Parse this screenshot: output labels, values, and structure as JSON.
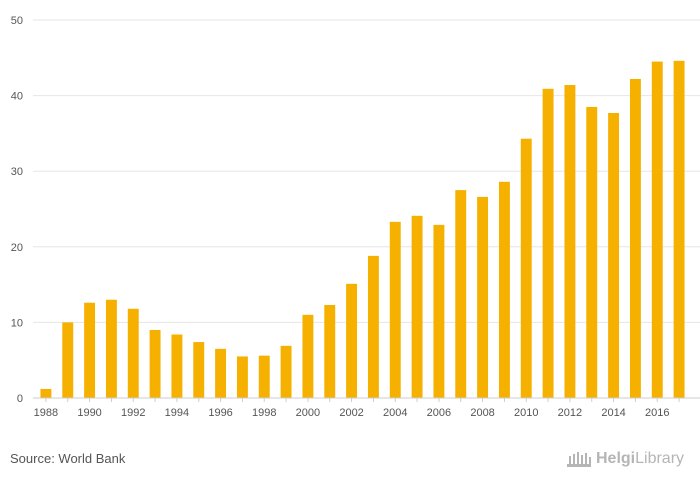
{
  "chart_data": {
    "type": "bar",
    "title": "",
    "xlabel": "",
    "ylabel": "",
    "ylim": [
      0,
      50
    ],
    "yticks": [
      0,
      10,
      20,
      30,
      40,
      50
    ],
    "grid": true,
    "legend": "none",
    "bar_color": "#F5B000",
    "categories": [
      "1988",
      "1989",
      "1990",
      "1991",
      "1992",
      "1993",
      "1994",
      "1995",
      "1996",
      "1997",
      "1998",
      "1999",
      "2000",
      "2001",
      "2002",
      "2003",
      "2004",
      "2005",
      "2006",
      "2007",
      "2008",
      "2009",
      "2010",
      "2011",
      "2012",
      "2013",
      "2014",
      "2015",
      "2016",
      "2017"
    ],
    "values": [
      1.2,
      10.0,
      12.6,
      13.0,
      11.8,
      9.0,
      8.4,
      7.4,
      6.5,
      5.5,
      5.6,
      6.9,
      11.0,
      12.3,
      15.1,
      18.8,
      23.3,
      24.1,
      22.9,
      27.5,
      26.6,
      28.6,
      34.3,
      40.9,
      41.4,
      38.5,
      37.7,
      42.2,
      44.5,
      44.6
    ],
    "x_tick_labels": [
      "1988",
      "",
      "1990",
      "",
      "1992",
      "",
      "1994",
      "",
      "1996",
      "",
      "1998",
      "",
      "2000",
      "",
      "2002",
      "",
      "2004",
      "",
      "2006",
      "",
      "2008",
      "",
      "2010",
      "",
      "2012",
      "",
      "2014",
      "",
      "2016",
      ""
    ]
  },
  "footer": {
    "source": "Source: World Bank",
    "brand_bold": "Helgi",
    "brand_light": "Library"
  },
  "icons": {
    "brand": "library-building-icon"
  }
}
